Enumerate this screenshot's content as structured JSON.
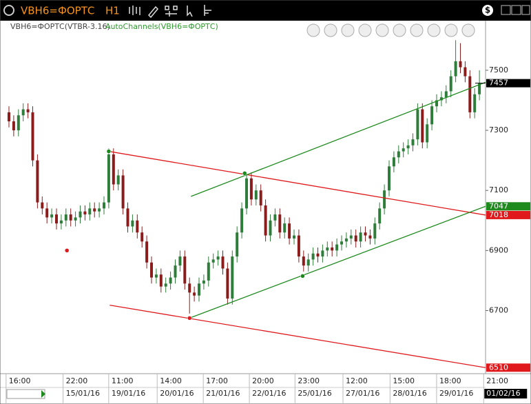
{
  "window": {
    "symbol": "VBH6=ФОРТС",
    "timeframe": "H1"
  },
  "chart_data": {
    "type": "candlestick",
    "title": "VBH6=ФОРТС(VTBR-3.16)",
    "indicator": "AutoChannels(VBH6=ФОРТС)",
    "up_color": "#2e7d3a",
    "down_color": "#8b1c1c",
    "open": [
      7360,
      7330,
      7300,
      7350,
      7370,
      7360,
      7200,
      7060,
      7040,
      7010,
      7020,
      6990,
      7000,
      7020,
      7000,
      7010,
      7030,
      7020,
      7040,
      7030,
      7040,
      7060,
      7220,
      7120,
      7150,
      7040,
      6980,
      7000,
      6960,
      6930,
      6860,
      6810,
      6820,
      6780,
      6790,
      6810,
      6850,
      6880,
      6790,
      6760,
      6750,
      6790,
      6800,
      6860,
      6870,
      6880,
      6840,
      6740,
      6880,
      6960,
      7040,
      7140,
      7070,
      7100,
      7050,
      6950,
      7000,
      7020,
      6960,
      6990,
      6940,
      6950,
      6880,
      6850,
      6870,
      6890,
      6880,
      6900,
      6910,
      6900,
      6920,
      6930,
      6940,
      6950,
      6930,
      6960,
      6950,
      6940,
      6990,
      7040,
      7100,
      7180,
      7210,
      7230,
      7240,
      7250,
      7270,
      7370,
      7260,
      7320,
      7380,
      7400,
      7410,
      7430,
      7480,
      7530,
      7510,
      7480,
      7360,
      7420
    ],
    "high": [
      7380,
      7350,
      7370,
      7390,
      7390,
      7380,
      7220,
      7080,
      7060,
      7040,
      7040,
      7020,
      7040,
      7040,
      7030,
      7050,
      7050,
      7060,
      7060,
      7060,
      7080,
      7240,
      7240,
      7170,
      7170,
      7060,
      7020,
      7020,
      6980,
      6950,
      6880,
      6840,
      6840,
      6810,
      6830,
      6870,
      6900,
      6900,
      6810,
      6780,
      6810,
      6820,
      6880,
      6890,
      6900,
      6900,
      6860,
      6900,
      6980,
      7060,
      7160,
      7160,
      7120,
      7120,
      7070,
      7020,
      7040,
      7040,
      7010,
      7010,
      6970,
      6970,
      6900,
      6890,
      6910,
      6910,
      6920,
      6930,
      6930,
      6940,
      6950,
      6960,
      6970,
      6970,
      6980,
      6980,
      6970,
      7010,
      7060,
      7120,
      7200,
      7230,
      7250,
      7260,
      7270,
      7290,
      7390,
      7390,
      7340,
      7400,
      7420,
      7430,
      7450,
      7500,
      7600,
      7590,
      7530,
      7500,
      7440,
      7500
    ],
    "low": [
      7310,
      7280,
      7280,
      7330,
      7340,
      7180,
      7040,
      7020,
      6990,
      6990,
      6970,
      6970,
      6980,
      6980,
      6980,
      6990,
      7000,
      7000,
      7010,
      7010,
      7020,
      7040,
      7100,
      7100,
      7020,
      6960,
      6960,
      6940,
      6910,
      6840,
      6790,
      6790,
      6760,
      6760,
      6770,
      6790,
      6830,
      6770,
      6690,
      6730,
      6730,
      6770,
      6780,
      6840,
      6850,
      6820,
      6720,
      6720,
      6860,
      6940,
      7020,
      7050,
      7050,
      7030,
      6930,
      6930,
      6980,
      6940,
      6940,
      6920,
      6920,
      6860,
      6830,
      6830,
      6850,
      6860,
      6860,
      6880,
      6880,
      6880,
      6900,
      6910,
      6920,
      6910,
      6910,
      6930,
      6920,
      6920,
      6970,
      7020,
      7080,
      7160,
      7190,
      7210,
      7220,
      7230,
      7250,
      7240,
      7240,
      7300,
      7360,
      7380,
      7390,
      7410,
      7460,
      7490,
      7460,
      7340,
      7340,
      7400
    ],
    "close": [
      7330,
      7300,
      7350,
      7370,
      7360,
      7200,
      7060,
      7040,
      7010,
      7020,
      6990,
      7000,
      7020,
      7000,
      7010,
      7030,
      7020,
      7040,
      7030,
      7040,
      7060,
      7220,
      7120,
      7150,
      7040,
      6980,
      7000,
      6960,
      6930,
      6860,
      6810,
      6820,
      6780,
      6790,
      6810,
      6850,
      6880,
      6790,
      6760,
      6750,
      6790,
      6800,
      6860,
      6870,
      6880,
      6840,
      6740,
      6880,
      6960,
      7040,
      7140,
      7070,
      7100,
      7050,
      6950,
      7000,
      7020,
      6960,
      6990,
      6940,
      6950,
      6880,
      6850,
      6870,
      6890,
      6880,
      6900,
      6910,
      6900,
      6920,
      6930,
      6940,
      6950,
      6930,
      6960,
      6950,
      6940,
      6990,
      7040,
      7100,
      7180,
      7210,
      7230,
      7240,
      7250,
      7270,
      7370,
      7260,
      7320,
      7380,
      7400,
      7410,
      7430,
      7480,
      7530,
      7510,
      7480,
      7360,
      7420,
      7457
    ],
    "ylim": [
      6490,
      7665
    ],
    "yticks": [
      6700,
      6900,
      7100,
      7300,
      7500
    ],
    "grid": false,
    "xticks": [
      {
        "index": 2,
        "time": "16:00"
      },
      {
        "index": 14,
        "time": "22:00",
        "date": "15/01/16"
      },
      {
        "index": 23.6,
        "time": "11:00",
        "date": "19/01/16"
      },
      {
        "index": 33.8,
        "time": "14:00",
        "date": "20/01/16"
      },
      {
        "index": 43.5,
        "time": "17:00",
        "date": "21/01/16"
      },
      {
        "index": 53.2,
        "time": "20:00",
        "date": "22/01/16"
      },
      {
        "index": 62.8,
        "time": "23:00",
        "date": "25/01/16"
      },
      {
        "index": 72.9,
        "time": "12:00",
        "date": "27/01/16"
      },
      {
        "index": 82.8,
        "time": "15:00",
        "date": "28/01/16"
      },
      {
        "index": 92.6,
        "time": "18:00",
        "date": "29/01/16"
      },
      {
        "index": 102.5,
        "time": "21:00",
        "date": "01/02/16"
      }
    ],
    "channels": [
      {
        "color": "#e0191c",
        "from": [
          21,
          7230
        ],
        "to": [
          100.3,
          7018
        ]
      },
      {
        "color": "#e0191c",
        "from": [
          21.2,
          6718
        ],
        "to": [
          100.3,
          6510
        ]
      },
      {
        "color": "#1e8a1e",
        "from": [
          38,
          6675
        ],
        "to": [
          100.3,
          7047
        ]
      },
      {
        "color": "#1e8a1e",
        "from": [
          38.3,
          7080
        ],
        "to": [
          100.3,
          7460
        ]
      }
    ],
    "anchors": [
      {
        "color": "#e0191c",
        "index": 12.2,
        "value": 6900
      },
      {
        "color": "#1e8a1e",
        "index": 21,
        "value": 7230
      },
      {
        "color": "#e0191c",
        "index": 38,
        "value": 6675
      },
      {
        "color": "#1e8a1e",
        "index": 49.6,
        "value": 7157
      },
      {
        "color": "#1e8a1e",
        "index": 61.8,
        "value": 6815
      }
    ],
    "price_tags": [
      {
        "value": 7457,
        "color": "#000000"
      },
      {
        "value": 7047,
        "color": "#1e8a1e"
      },
      {
        "value": 7018,
        "color": "#e0191c"
      },
      {
        "value": 6510,
        "color": "#e0191c"
      }
    ]
  }
}
